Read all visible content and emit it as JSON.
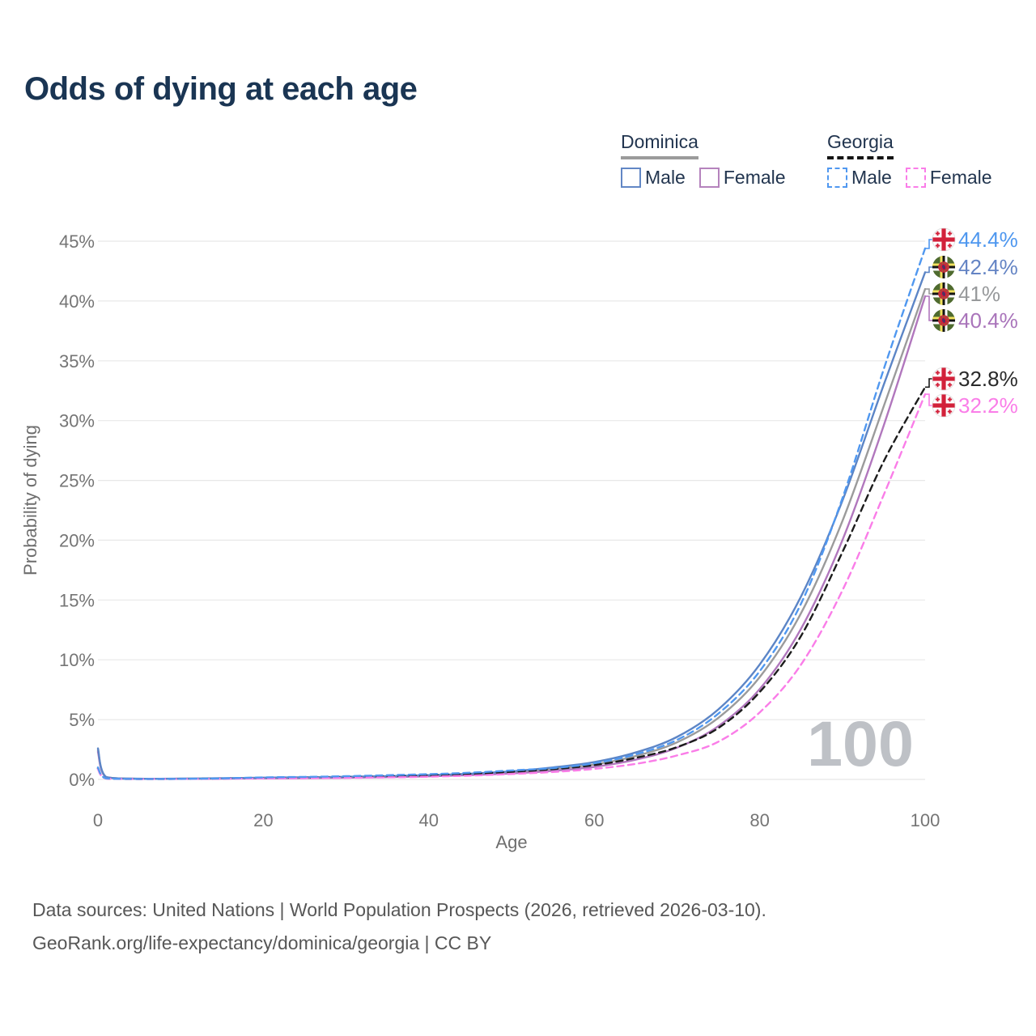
{
  "title": "Odds of dying at each age",
  "legend": {
    "groups": [
      {
        "id": "dominica",
        "label": "Dominica",
        "line_style": "solid",
        "underline_color": "#9b9b9b",
        "items": [
          {
            "id": "dominica-male",
            "label": "Male",
            "color": "#6287c5"
          },
          {
            "id": "dominica-female",
            "label": "Female",
            "color": "#b583bd"
          }
        ]
      },
      {
        "id": "georgia",
        "label": "Georgia",
        "line_style": "dashed",
        "underline_color": "#141414",
        "items": [
          {
            "id": "georgia-male",
            "label": "Male",
            "color": "#5098f0"
          },
          {
            "id": "georgia-female",
            "label": "Female",
            "color": "#fa7de8"
          }
        ]
      }
    ]
  },
  "watermark": "100",
  "chart_data": {
    "type": "line",
    "title": "Odds of dying at each age",
    "xlabel": "Age",
    "ylabel": "Probability of dying",
    "xlim": [
      0,
      100
    ],
    "ylim_percent": [
      0,
      45
    ],
    "x_ticks": [
      "0",
      "20",
      "40",
      "60",
      "80",
      "100"
    ],
    "y_ticks": [
      "0%",
      "5%",
      "10%",
      "15%",
      "20%",
      "25%",
      "30%",
      "35%",
      "40%",
      "45%"
    ],
    "grid": "horizontal",
    "legend_position": "top-right",
    "ages": [
      0,
      1,
      5,
      10,
      15,
      20,
      25,
      30,
      35,
      40,
      45,
      50,
      55,
      60,
      65,
      70,
      75,
      80,
      85,
      90,
      95,
      100
    ],
    "series": [
      {
        "id": "dominica-both",
        "name": "Dominica",
        "country": "Dominica",
        "sex": "Both",
        "color": "#9b9b9b",
        "dash": "solid",
        "flag": "dominica",
        "end_label": "41%",
        "end_label_color": "#97999b",
        "values": [
          2.45,
          0.19,
          0.055,
          0.06,
          0.085,
          0.12,
          0.145,
          0.18,
          0.235,
          0.31,
          0.42,
          0.59,
          0.86,
          1.25,
          1.95,
          3.1,
          5.15,
          8.55,
          13.9,
          21.6,
          31.2,
          41.0
        ]
      },
      {
        "id": "dominica-female",
        "name": "Dominica Female",
        "country": "Dominica",
        "sex": "Female",
        "color": "#b177bd",
        "dash": "solid",
        "flag": "dominica",
        "end_label": "40.4%",
        "end_label_color": "#a974ba",
        "values": [
          2.3,
          0.18,
          0.05,
          0.05,
          0.07,
          0.09,
          0.11,
          0.14,
          0.19,
          0.26,
          0.36,
          0.5,
          0.72,
          1.05,
          1.65,
          2.65,
          4.45,
          7.55,
          12.6,
          20.0,
          29.6,
          40.4
        ]
      },
      {
        "id": "dominica-male",
        "name": "Dominica Male",
        "country": "Dominica",
        "sex": "Male",
        "color": "#5c85c6",
        "dash": "solid",
        "flag": "dominica",
        "end_label": "42.4%",
        "end_label_color": "#6484c4",
        "values": [
          2.6,
          0.2,
          0.06,
          0.07,
          0.1,
          0.15,
          0.18,
          0.22,
          0.28,
          0.36,
          0.48,
          0.68,
          1.0,
          1.45,
          2.25,
          3.55,
          5.85,
          9.6,
          15.3,
          23.3,
          33.0,
          42.4
        ]
      },
      {
        "id": "georgia-both",
        "name": "Georgia",
        "country": "Georgia",
        "sex": "Both",
        "color": "#1c1c1c",
        "dash": "dashed",
        "flag": "georgia",
        "end_label": "32.8%",
        "end_label_color": "#2a2a2a",
        "values": [
          0.93,
          0.08,
          0.035,
          0.045,
          0.075,
          0.12,
          0.15,
          0.2,
          0.26,
          0.34,
          0.46,
          0.64,
          0.86,
          1.2,
          1.8,
          2.7,
          4.3,
          7.3,
          12.0,
          19.0,
          26.6,
          32.8
        ]
      },
      {
        "id": "georgia-female",
        "name": "Georgia Female",
        "country": "Georgia",
        "sex": "Female",
        "color": "#fa7de8",
        "dash": "dashed",
        "flag": "georgia",
        "end_label": "32.2%",
        "end_label_color": "#fa7de8",
        "values": [
          0.85,
          0.07,
          0.03,
          0.04,
          0.06,
          0.08,
          0.1,
          0.13,
          0.17,
          0.23,
          0.32,
          0.45,
          0.62,
          0.88,
          1.3,
          2.0,
          3.15,
          5.6,
          9.6,
          15.8,
          23.8,
          32.2
        ]
      },
      {
        "id": "georgia-male",
        "name": "Georgia Male",
        "country": "Georgia",
        "sex": "Male",
        "color": "#5098f0",
        "dash": "dashed",
        "flag": "georgia",
        "end_label": "44.4%",
        "end_label_color": "#4e97ef",
        "values": [
          1.0,
          0.09,
          0.04,
          0.05,
          0.09,
          0.17,
          0.21,
          0.27,
          0.35,
          0.44,
          0.56,
          0.75,
          0.95,
          1.35,
          2.1,
          3.3,
          5.5,
          9.05,
          14.7,
          23.5,
          34.3,
          44.4
        ]
      }
    ]
  },
  "flags": {
    "georgia": {
      "name": "Georgia flag",
      "bg": "#ffffff",
      "cross": "#d2213a"
    },
    "dominica": {
      "name": "Dominica flag",
      "bg": "#4f6b2f",
      "stripe_yellow": "#f0e15e",
      "stripe_black": "#141414",
      "stripe_white": "#ffffff",
      "disc": "#d2213a",
      "parrot": "#533063"
    }
  },
  "footer": {
    "line1": "Data sources: United Nations | World Population Prospects (2026, retrieved 2026-03-10).",
    "line2": "GeoRank.org/life-expectancy/dominica/georgia | CC BY"
  }
}
